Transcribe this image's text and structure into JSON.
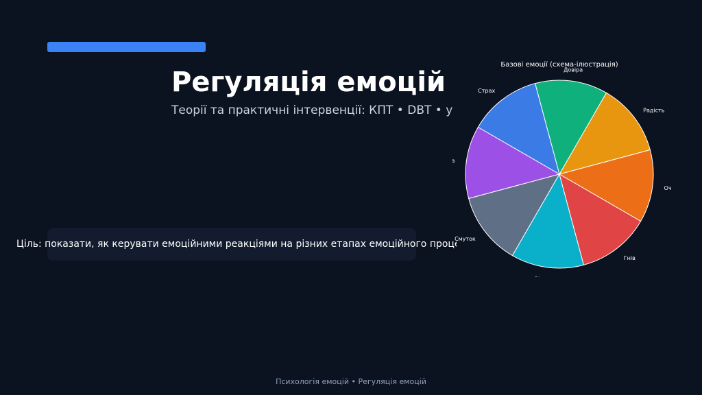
{
  "slide": {
    "title": "Регуляція емоцій",
    "subtitle": "Теорії та практичні інтервенції: КПТ • DBT • усвідомленість",
    "goal": "Ціль: показати, як керувати емоційними реакціями на різних етапах емоційного процесу",
    "footer": "Психологія емоцій • Регуляція емоцій"
  },
  "colors": {
    "background": "#0b1220",
    "accent": "#3b82f6",
    "goal_box": "#131c2e"
  },
  "chart_data": {
    "type": "pie",
    "title": "Базові емоції (схема-ілюстрація)",
    "labels": [
      "Радість",
      "Довіра",
      "Страх",
      "Подив",
      "Смуток",
      "Відраза",
      "Гнів",
      "Очікування"
    ],
    "values": [
      1,
      1,
      1,
      1,
      1,
      1,
      1,
      1
    ],
    "colors": [
      "#e8960f",
      "#10b07d",
      "#3b7be5",
      "#9c50e5",
      "#5f6f86",
      "#0aafc9",
      "#e04444",
      "#ec6f17"
    ],
    "start_angle_deg": 15,
    "direction": "counterclockwise",
    "slice_edge_color": "#ffffff",
    "legend": "none"
  }
}
